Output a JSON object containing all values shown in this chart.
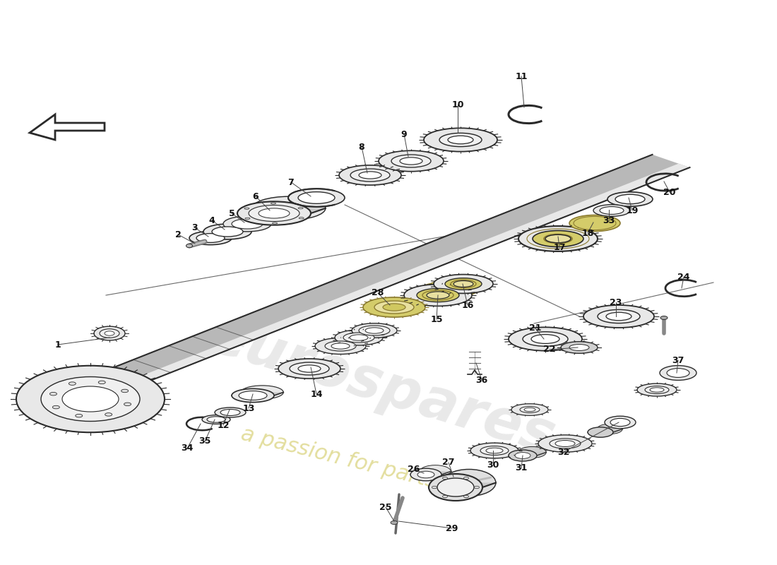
{
  "background_color": "#ffffff",
  "watermark_line1": "eurospares",
  "watermark_line2": "a passion for parts",
  "gear_fill": "#e8e8e8",
  "gear_edge": "#2a2a2a",
  "highlight_fill": "#d4cc6a",
  "highlight_edge": "#8a7a30",
  "shaft_fill": "#d0d0d0",
  "shaft_highlight": "#f0f0f0",
  "shaft_shadow": "#a0a0a0"
}
